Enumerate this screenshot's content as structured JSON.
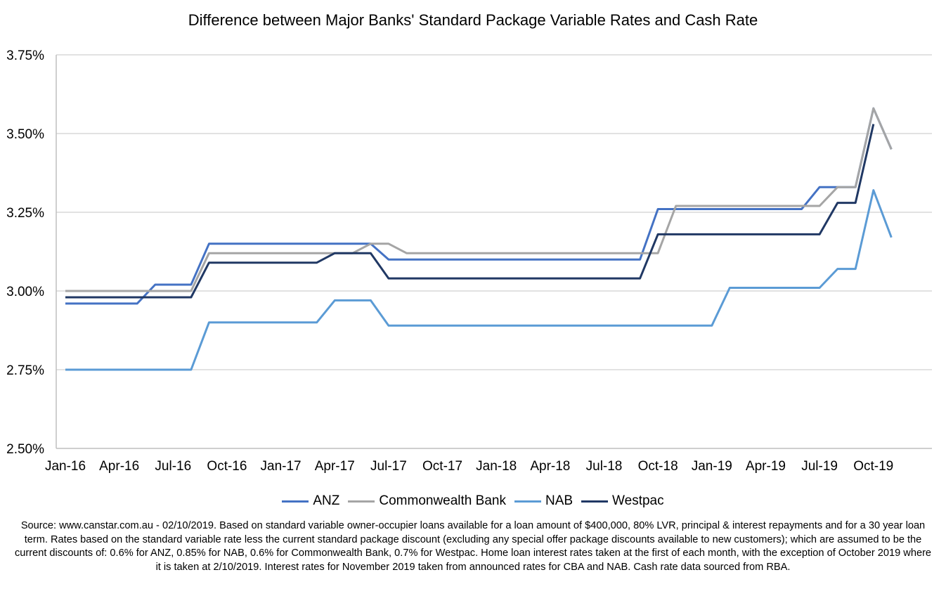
{
  "chart_data": {
    "type": "line",
    "title": "Difference between Major Banks' Standard Package Variable Rates and Cash Rate",
    "xlabel": "",
    "ylabel": "",
    "ylim": [
      2.5,
      3.75
    ],
    "yticks": [
      "2.50%",
      "2.75%",
      "3.00%",
      "3.25%",
      "3.50%",
      "3.75%"
    ],
    "x_tick_labels": [
      "Jan-16",
      "Apr-16",
      "Jul-16",
      "Oct-16",
      "Jan-17",
      "Apr-17",
      "Jul-17",
      "Oct-17",
      "Jan-18",
      "Apr-18",
      "Jul-18",
      "Oct-18",
      "Jan-19",
      "Apr-19",
      "Jul-19",
      "Oct-19"
    ],
    "categories": [
      "Jan-16",
      "Feb-16",
      "Mar-16",
      "Apr-16",
      "May-16",
      "Jun-16",
      "Jul-16",
      "Aug-16",
      "Sep-16",
      "Oct-16",
      "Nov-16",
      "Dec-16",
      "Jan-17",
      "Feb-17",
      "Mar-17",
      "Apr-17",
      "May-17",
      "Jun-17",
      "Jul-17",
      "Aug-17",
      "Sep-17",
      "Oct-17",
      "Nov-17",
      "Dec-17",
      "Jan-18",
      "Feb-18",
      "Mar-18",
      "Apr-18",
      "May-18",
      "Jun-18",
      "Jul-18",
      "Aug-18",
      "Sep-18",
      "Oct-18",
      "Nov-18",
      "Dec-18",
      "Jan-19",
      "Feb-19",
      "Mar-19",
      "Apr-19",
      "May-19",
      "Jun-19",
      "Jul-19",
      "Aug-19",
      "Sep-19",
      "Oct-19",
      "Nov-19"
    ],
    "grid": true,
    "legend_position": "bottom",
    "series": [
      {
        "name": "ANZ",
        "color": "#4472C4",
        "values": [
          2.96,
          2.96,
          2.96,
          2.96,
          2.96,
          3.02,
          3.02,
          3.02,
          3.15,
          3.15,
          3.15,
          3.15,
          3.15,
          3.15,
          3.15,
          3.15,
          3.15,
          3.15,
          3.1,
          3.1,
          3.1,
          3.1,
          3.1,
          3.1,
          3.1,
          3.1,
          3.1,
          3.1,
          3.1,
          3.1,
          3.1,
          3.1,
          3.1,
          3.26,
          3.26,
          3.26,
          3.26,
          3.26,
          3.26,
          3.26,
          3.26,
          3.26,
          3.33,
          3.33,
          3.33,
          3.58,
          3.45
        ]
      },
      {
        "name": "Commonwealth Bank",
        "color": "#A5A5A5",
        "values": [
          3.0,
          3.0,
          3.0,
          3.0,
          3.0,
          3.0,
          3.0,
          3.0,
          3.12,
          3.12,
          3.12,
          3.12,
          3.12,
          3.12,
          3.12,
          3.12,
          3.12,
          3.15,
          3.15,
          3.12,
          3.12,
          3.12,
          3.12,
          3.12,
          3.12,
          3.12,
          3.12,
          3.12,
          3.12,
          3.12,
          3.12,
          3.12,
          3.12,
          3.12,
          3.27,
          3.27,
          3.27,
          3.27,
          3.27,
          3.27,
          3.27,
          3.27,
          3.27,
          3.33,
          3.33,
          3.58,
          3.45
        ]
      },
      {
        "name": "NAB",
        "color": "#5B9BD5",
        "values": [
          2.75,
          2.75,
          2.75,
          2.75,
          2.75,
          2.75,
          2.75,
          2.75,
          2.9,
          2.9,
          2.9,
          2.9,
          2.9,
          2.9,
          2.9,
          2.97,
          2.97,
          2.97,
          2.89,
          2.89,
          2.89,
          2.89,
          2.89,
          2.89,
          2.89,
          2.89,
          2.89,
          2.89,
          2.89,
          2.89,
          2.89,
          2.89,
          2.89,
          2.89,
          2.89,
          2.89,
          2.89,
          3.01,
          3.01,
          3.01,
          3.01,
          3.01,
          3.01,
          3.07,
          3.07,
          3.32,
          3.17
        ]
      },
      {
        "name": "Westpac",
        "color": "#203864",
        "values": [
          2.98,
          2.98,
          2.98,
          2.98,
          2.98,
          2.98,
          2.98,
          2.98,
          3.09,
          3.09,
          3.09,
          3.09,
          3.09,
          3.09,
          3.09,
          3.12,
          3.12,
          3.12,
          3.04,
          3.04,
          3.04,
          3.04,
          3.04,
          3.04,
          3.04,
          3.04,
          3.04,
          3.04,
          3.04,
          3.04,
          3.04,
          3.04,
          3.04,
          3.18,
          3.18,
          3.18,
          3.18,
          3.18,
          3.18,
          3.18,
          3.18,
          3.18,
          3.18,
          3.28,
          3.28,
          3.53,
          null
        ]
      }
    ],
    "footnote": "Source:  www.canstar.com.au - 02/10/2019.  Based on standard variable owner-occupier loans available for a loan amount of $400,000, 80% LVR, principal & interest repayments and for a 30 year loan term.  Rates based on the standard variable rate less the current standard package discount (excluding any special offer package discounts available to new customers); which are assumed to be the current discounts of: 0.6% for ANZ, 0.85% for NAB, 0.6% for Commonwealth Bank, 0.7% for Westpac.  Home loan interest rates taken at the first of each month, with the exception of October 2019 where it is taken at 2/10/2019.  Interest rates for November 2019 taken from announced rates for CBA and NAB.  Cash rate data sourced from RBA."
  }
}
